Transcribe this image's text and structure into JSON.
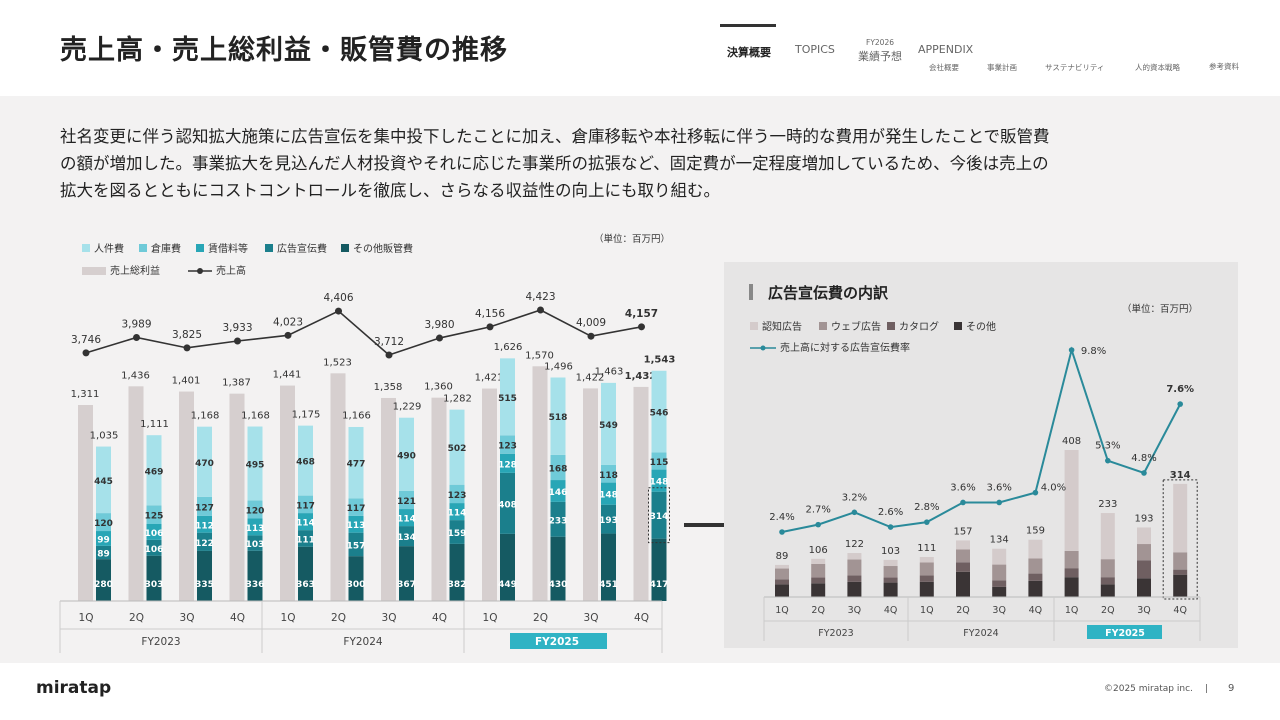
{
  "header": {
    "title": "売上高・売上総利益・販管費の推移",
    "nav": {
      "tabs": [
        "決算概要",
        "TOPICS",
        "業績予想",
        "APPENDIX"
      ],
      "forecast_small": "FY2026",
      "sub_items": [
        "会社概要",
        "事業計画",
        "サステナビリティ",
        "人的資本戦略",
        "参考資料"
      ]
    }
  },
  "summary": {
    "lines": [
      "社名変更に伴う認知拡大施策に広告宣伝を集中投下したことに加え、倉庫移転や本社移転に伴う一時的な費用が発生したことで販管費",
      "の額が増加した。事業拡大を見込んだ人材投資やそれに応じた事業所の拡張など、固定費が一定程度増加しているため、今後は売上の",
      "拡大を図るとともにコストコントロールを徹底し、さらなる収益性の向上にも取り組む。"
    ]
  },
  "colors": {
    "personnel": "#a6e1ea",
    "warehouse": "#6fcad8",
    "rent": "#28a6b6",
    "advertising": "#1b7f8c",
    "other_sga": "#155a62",
    "gross_profit": "#d6cfcf",
    "sales_line": "#333333",
    "fy2025_badge": "#2fb3c4",
    "awareness": "#d4cbcb",
    "web": "#a29494",
    "catalog": "#6f5f61",
    "ad_other": "#3a3435",
    "ratio_line": "#2a8a9a",
    "panel_bg": "#e6e5e5"
  },
  "chart_data": [
    {
      "type": "bar",
      "unit": "（単位：百万円）",
      "categories": [
        "1Q",
        "2Q",
        "3Q",
        "4Q",
        "1Q",
        "2Q",
        "3Q",
        "4Q",
        "1Q",
        "2Q",
        "3Q",
        "4Q"
      ],
      "fiscal_years": [
        "FY2023",
        "FY2024",
        "FY2025"
      ],
      "legend": [
        "人件費",
        "倉庫費",
        "賃借料等",
        "広告宣伝費",
        "その他販管費",
        "売上総利益",
        "売上高"
      ],
      "sales": [
        3746,
        3989,
        3825,
        3933,
        4023,
        4406,
        3712,
        3980,
        4156,
        4423,
        4009,
        4157
      ],
      "gross_profit": [
        1311,
        1436,
        1401,
        1387,
        1441,
        1523,
        1358,
        1360,
        1421,
        1570,
        1422,
        1432
      ],
      "sga_total": [
        1035,
        1111,
        1168,
        1168,
        1175,
        1166,
        1229,
        1282,
        1626,
        1496,
        1463,
        1543
      ],
      "series": [
        {
          "name": "その他販管費",
          "values": [
            280,
            303,
            335,
            336,
            363,
            300,
            367,
            382,
            449,
            430,
            451,
            417
          ]
        },
        {
          "name": "広告宣伝費",
          "values": [
            89,
            106,
            122,
            103,
            111,
            157,
            134,
            159,
            408,
            233,
            193,
            314
          ]
        },
        {
          "name": "賃借料等",
          "values": [
            99,
            106,
            112,
            113,
            114,
            113,
            114,
            114,
            128,
            146,
            148,
            148
          ]
        },
        {
          "name": "倉庫費",
          "values": [
            120,
            125,
            127,
            120,
            117,
            117,
            121,
            123,
            123,
            168,
            118,
            115
          ]
        },
        {
          "name": "人件費",
          "values": [
            445,
            469,
            470,
            495,
            468,
            477,
            490,
            502,
            515,
            518,
            549,
            546
          ]
        }
      ],
      "ylim": [
        0,
        4600
      ]
    },
    {
      "type": "bar",
      "title": "広告宣伝費の内訳",
      "unit": "（単位：百万円）",
      "categories": [
        "1Q",
        "2Q",
        "3Q",
        "4Q",
        "1Q",
        "2Q",
        "3Q",
        "4Q",
        "1Q",
        "2Q",
        "3Q",
        "4Q"
      ],
      "fiscal_years": [
        "FY2023",
        "FY2024",
        "FY2025"
      ],
      "legend": [
        "認知広告",
        "ウェブ広告",
        "カタログ",
        "その他",
        "売上高に対する広告宣伝費率"
      ],
      "totals": [
        89,
        106,
        122,
        103,
        111,
        157,
        134,
        159,
        408,
        233,
        193,
        314
      ],
      "series": [
        {
          "name": "その他",
          "values": [
            35,
            38,
            42,
            40,
            42,
            70,
            28,
            45,
            55,
            35,
            52,
            62
          ]
        },
        {
          "name": "カタログ",
          "values": [
            14,
            16,
            18,
            14,
            18,
            26,
            18,
            20,
            25,
            20,
            50,
            14
          ]
        },
        {
          "name": "ウェブ広告",
          "values": [
            30,
            38,
            44,
            32,
            36,
            36,
            44,
            42,
            48,
            50,
            45,
            48
          ]
        },
        {
          "name": "認知広告",
          "values": [
            10,
            14,
            18,
            17,
            15,
            25,
            44,
            52,
            280,
            128,
            46,
            190
          ]
        }
      ],
      "ratio": [
        2.4,
        2.7,
        3.2,
        2.6,
        2.8,
        3.6,
        3.6,
        4.0,
        9.8,
        5.3,
        4.8,
        7.6
      ],
      "ratio_labels": [
        "2.4%",
        "2.7%",
        "3.2%",
        "2.6%",
        "2.8%",
        "3.6%",
        "3.6%",
        "4.0%",
        "9.8%",
        "5.3%",
        "4.8%",
        "7.6%"
      ]
    }
  ],
  "footer": {
    "logo": "miratap",
    "copyright": "©2025 miratap inc.",
    "separator": "|",
    "page": "9"
  }
}
